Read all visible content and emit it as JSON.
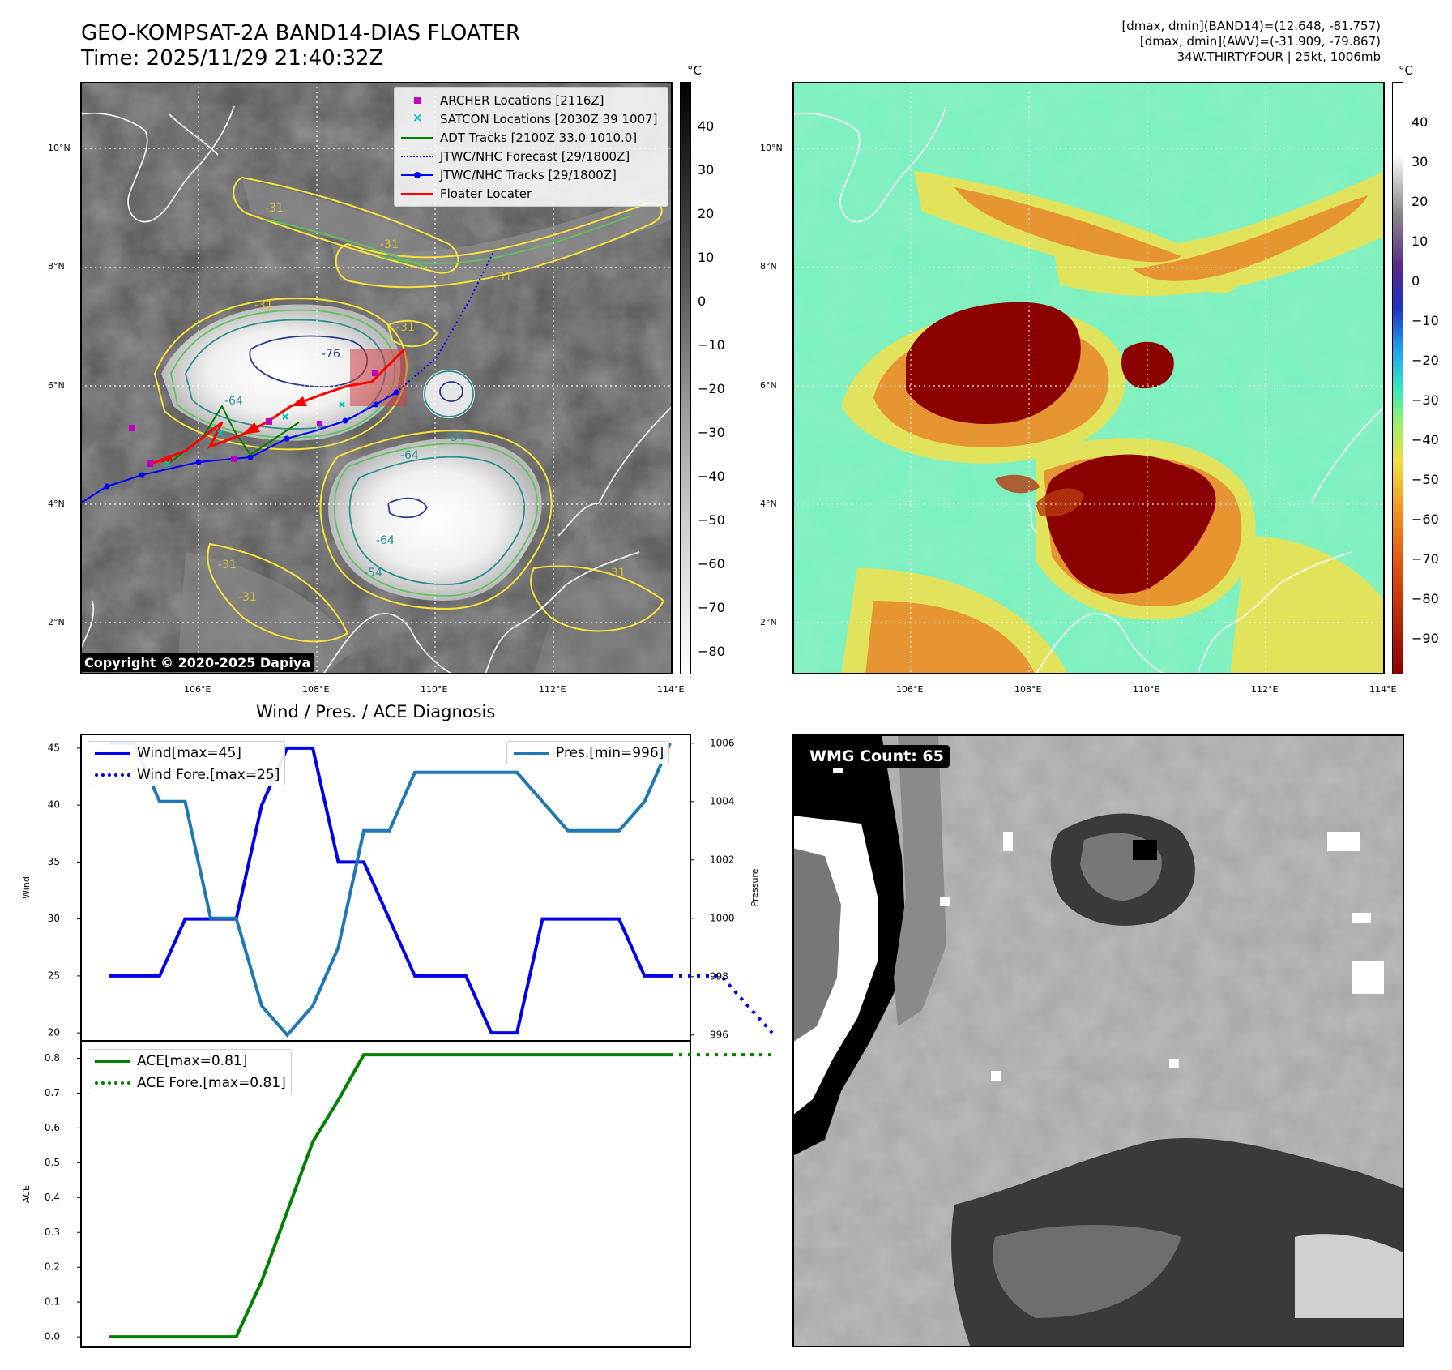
{
  "title": {
    "line1": "GEO-KOMPSAT-2A BAND14-DIAS FLOATER",
    "line2": "Time: 2025/11/29 21:40:32Z"
  },
  "info": {
    "line1": "[dmax, dmin](BAND14)=(12.648, -81.757)",
    "line2": "[dmax, dmin](AWV)=(-31.909, -79.867)",
    "line3": "34W.THIRTYFOUR | 25kt, 1006mb"
  },
  "map_axes": {
    "lat_ticks": [
      "10°N",
      "8°N",
      "6°N",
      "4°N",
      "2°N"
    ],
    "lon_ticks": [
      "106°E",
      "108°E",
      "110°E",
      "112°E",
      "114°E"
    ]
  },
  "colorbar_left": {
    "unit": "°C",
    "ticks": [
      "40",
      "30",
      "20",
      "10",
      "0",
      "−10",
      "−20",
      "−30",
      "−40",
      "−50",
      "−60",
      "−70",
      "−80"
    ]
  },
  "colorbar_right": {
    "unit": "°C",
    "ticks": [
      "40",
      "30",
      "20",
      "10",
      "0",
      "−10",
      "−20",
      "−30",
      "−40",
      "−50",
      "−60",
      "−70",
      "−80",
      "−90"
    ]
  },
  "map_legend": [
    {
      "label": "ARCHER Locations [2116Z]",
      "color": "#c000c0",
      "style": "square"
    },
    {
      "label": "SATCON Locations [2030Z 39 1007]",
      "color": "#00c0c0",
      "style": "x"
    },
    {
      "label": "ADT Tracks [2100Z 33.0 1010.0]",
      "color": "#008000",
      "style": "line"
    },
    {
      "label": "JTWC/NHC Forecast [29/1800Z]",
      "color": "#0000ff",
      "style": "dotted"
    },
    {
      "label": "JTWC/NHC Tracks [29/1800Z]",
      "color": "#0000ff",
      "style": "line-dot"
    },
    {
      "label": "Floater Locater",
      "color": "#ff0000",
      "style": "line"
    }
  ],
  "contour_labels": [
    "-31",
    "-31",
    "-31",
    "-31",
    "-31",
    "-76",
    "-64",
    "-64",
    "-54",
    "-64",
    "-31",
    "-31",
    "-31",
    "-54"
  ],
  "copyright": "Copyright © 2020-2025 Dapiya",
  "wmg_count": "WMG Count: 65",
  "chart_data": [
    {
      "type": "line",
      "title": "Wind / Pres. / ACE Diagnosis",
      "ylabel": "Wind",
      "y2label": "Pressure",
      "ylim": [
        19.3,
        46.2
      ],
      "y2lim": [
        995.8,
        1006.3
      ],
      "yticks": [
        "45",
        "40",
        "35",
        "30",
        "25",
        "20"
      ],
      "y2ticks": [
        "1006",
        "1004",
        "1002",
        "1000",
        "998",
        "996"
      ],
      "x_index": [
        0,
        1,
        2,
        3,
        4,
        5,
        6,
        7,
        8,
        9,
        10,
        11,
        12,
        13,
        14,
        15,
        16,
        17,
        18,
        19,
        20,
        21,
        22,
        23,
        24,
        25,
        26
      ],
      "series": [
        {
          "name": "Wind[max=45]",
          "color": "#0000ee",
          "style": "solid",
          "x": [
            0,
            1,
            2,
            3,
            4,
            5,
            6,
            7,
            8,
            9,
            10,
            11,
            12,
            13,
            14,
            15,
            16,
            17,
            18,
            19,
            20,
            21,
            22
          ],
          "values": [
            25,
            25,
            25,
            30,
            30,
            30,
            40,
            45,
            45,
            35,
            35,
            30,
            25,
            25,
            25,
            20,
            20,
            30,
            30,
            30,
            30,
            25,
            25
          ]
        },
        {
          "name": "Wind Fore.[max=25]",
          "color": "#0000ee",
          "style": "dotted",
          "x": [
            22,
            23,
            24,
            25,
            26
          ],
          "values": [
            25,
            25,
            25,
            22.5,
            20
          ]
        },
        {
          "name": "Pres.[min=996]",
          "color": "#1f77b4",
          "style": "solid",
          "axis": "right",
          "x": [
            0,
            1,
            2,
            3,
            4,
            5,
            6,
            7,
            8,
            9,
            10,
            11,
            12,
            13,
            14,
            15,
            16,
            17,
            18,
            19,
            20,
            21,
            22
          ],
          "values": [
            1006,
            1006,
            1004,
            1004,
            1000,
            1000,
            997,
            996,
            997,
            999,
            1003,
            1003,
            1005,
            1005,
            1005,
            1005,
            1005,
            1004,
            1003,
            1003,
            1003,
            1004,
            1006
          ]
        }
      ]
    },
    {
      "type": "line",
      "ylabel": "ACE",
      "ylim": [
        -0.03,
        0.85
      ],
      "yticks": [
        "0.8",
        "0.7",
        "0.6",
        "0.5",
        "0.4",
        "0.3",
        "0.2",
        "0.1",
        "0.0"
      ],
      "series": [
        {
          "name": "ACE[max=0.81]",
          "color": "#008000",
          "style": "solid",
          "x": [
            0,
            1,
            2,
            3,
            4,
            5,
            6,
            7,
            8,
            9,
            10,
            11,
            12,
            13,
            14,
            15,
            16,
            17,
            18,
            19,
            20,
            21,
            22
          ],
          "values": [
            0,
            0,
            0,
            0,
            0,
            0,
            0.16,
            0.36,
            0.56,
            0.68,
            0.81,
            0.81,
            0.81,
            0.81,
            0.81,
            0.81,
            0.81,
            0.81,
            0.81,
            0.81,
            0.81,
            0.81,
            0.81
          ]
        },
        {
          "name": "ACE Fore.[max=0.81]",
          "color": "#008000",
          "style": "dotted",
          "x": [
            22,
            23,
            24,
            25,
            26
          ],
          "values": [
            0.81,
            0.81,
            0.81,
            0.81,
            0.81
          ]
        }
      ]
    }
  ]
}
